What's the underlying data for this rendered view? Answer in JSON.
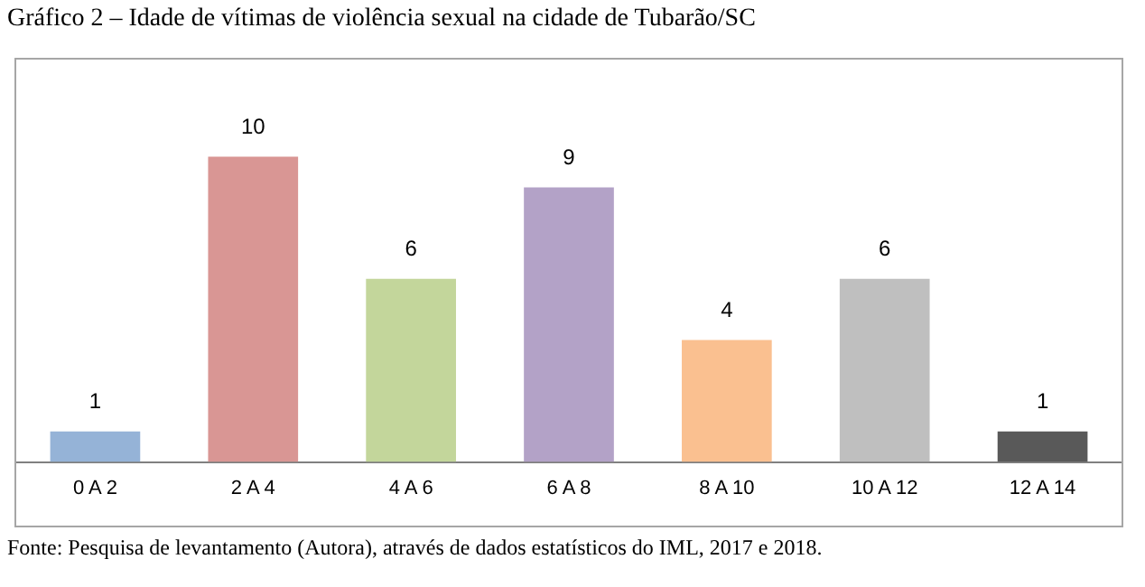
{
  "chart_data": {
    "type": "bar",
    "title": "Gráfico 2 – Idade de vítimas de violência sexual na cidade de Tubarão/SC",
    "categories": [
      "0 A 2",
      "2 A 4",
      "4 A 6",
      "6 A 8",
      "8 A 10",
      "10 A 12",
      "12 A 14"
    ],
    "values": [
      1,
      10,
      6,
      9,
      4,
      6,
      1
    ],
    "colors": [
      "#95b3d7",
      "#d99694",
      "#c3d69b",
      "#b3a2c7",
      "#fac090",
      "#bfbfbf",
      "#595959"
    ],
    "data_labels": true,
    "annotations": [
      "Fonte: Pesquisa de levantamento (Autora), através de dados estatísticos do IML, 2017 e 2018."
    ]
  }
}
